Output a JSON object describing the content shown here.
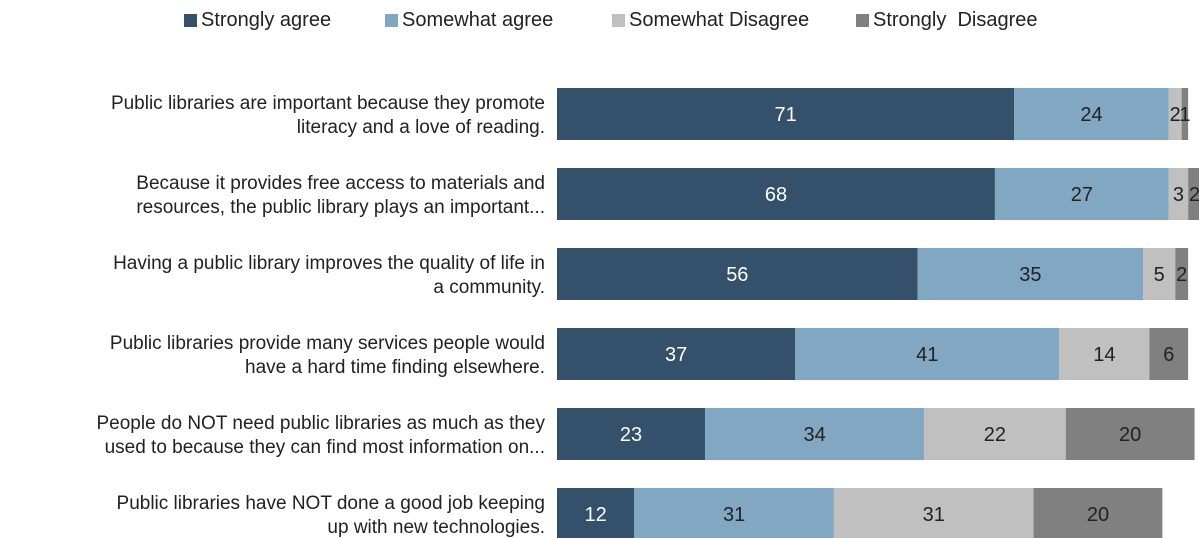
{
  "chart_data": {
    "type": "bar",
    "orientation": "horizontal",
    "stacked": true,
    "title": "",
    "xlabel": "",
    "ylabel": "",
    "grid": false,
    "legend_position": "top",
    "xlim": [
      0,
      100
    ],
    "categories": [
      "Public libraries are important because they promote literacy and a love of reading.",
      "Because it provides free access to materials and resources, the public library plays an important...",
      "Having a public library improves the quality of life in a community.",
      "Public libraries provide many services people would have a hard time finding elsewhere.",
      "People do NOT need public libraries as much as they used to because they can find most information on...",
      "Public libraries have NOT done a good job keeping up with new technologies."
    ],
    "category_lines": [
      [
        "Public libraries are important because they promote",
        "literacy and a love of reading."
      ],
      [
        "Because it provides free access to materials and",
        "resources, the public library plays an important..."
      ],
      [
        "Having a public library improves the quality of life in",
        "a community."
      ],
      [
        "Public libraries provide many services people would",
        "have a hard time finding elsewhere."
      ],
      [
        "People do NOT need public libraries as much as they",
        "used to because they can find most information on..."
      ],
      [
        "Public libraries have NOT done a good job keeping",
        "up with new technologies."
      ]
    ],
    "series": [
      {
        "name": "Strongly agree",
        "color": "#34506a",
        "label_color": "#ffffff",
        "values": [
          71,
          68,
          56,
          37,
          23,
          12
        ]
      },
      {
        "name": "Somewhat agree",
        "color": "#82a7c3",
        "label_color": "#222222",
        "values": [
          24,
          27,
          35,
          41,
          34,
          31
        ]
      },
      {
        "name": "Somewhat Disagree",
        "color": "#c0c0c0",
        "label_color": "#222222",
        "values": [
          2,
          3,
          5,
          14,
          22,
          31
        ]
      },
      {
        "name": "Strongly  Disagree",
        "color": "#808080",
        "label_color": "#222222",
        "values": [
          1,
          2,
          2,
          6,
          20,
          20
        ]
      }
    ]
  }
}
